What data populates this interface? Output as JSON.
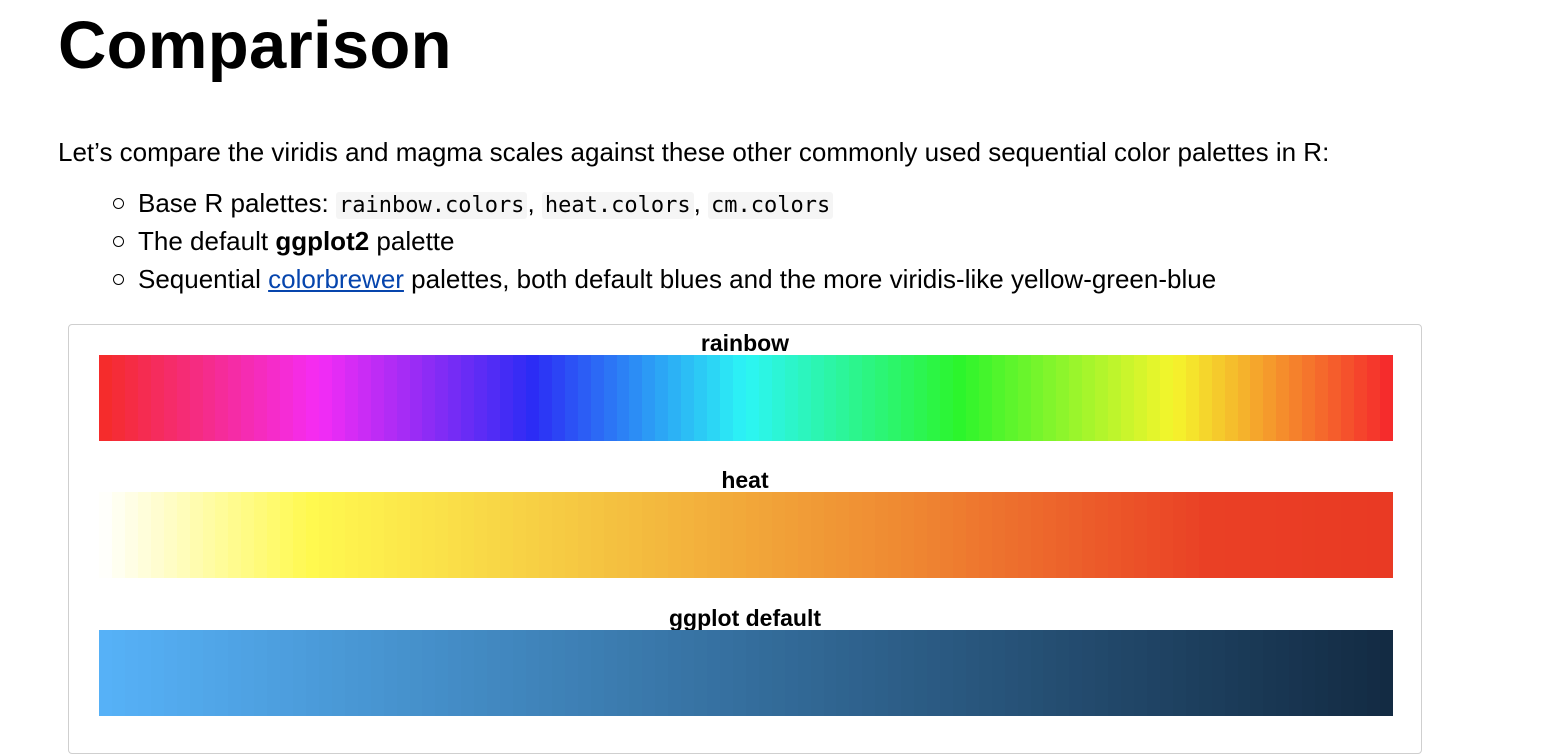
{
  "page": {
    "heading": "Comparison",
    "intro": "Let’s compare the viridis and magma scales against these other commonly used sequential color palettes in R:",
    "bullets": {
      "b1": {
        "text": "Base R palettes: ",
        "code1": "rainbow.colors",
        "sep1": ", ",
        "code2": "heat.colors",
        "sep2": ", ",
        "code3": "cm.colors"
      },
      "b2": {
        "pre": "The default ",
        "bold": "ggplot2",
        "post": " palette"
      },
      "b3": {
        "pre": "Sequential ",
        "link": "colorbrewer",
        "post": " palettes, both default blues and the more viridis-like yellow-green-blue"
      }
    }
  },
  "palettes": [
    {
      "name": "rainbow",
      "kind": "hsv",
      "n": 100,
      "colors": []
    },
    {
      "name": "heat",
      "kind": "heat",
      "n": 100,
      "colors": []
    },
    {
      "name": "ggplot default",
      "kind": "gradient",
      "n": 100,
      "colors": [
        "#132b43",
        "#56b1f7"
      ],
      "reverse": true
    }
  ],
  "colors": {
    "link": "#0645ad",
    "box_border": "#cfcfcf"
  }
}
